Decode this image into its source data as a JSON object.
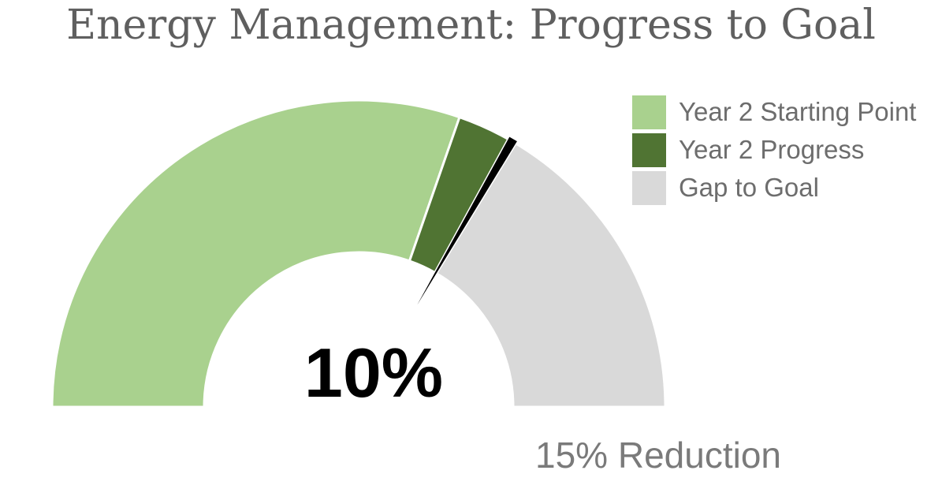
{
  "chart_data": {
    "type": "gauge",
    "title": "Energy Management: Progress to Goal",
    "value_label": "10%",
    "goal_label": "15% Reduction",
    "scale_max": 15,
    "series": [
      {
        "name": "Year 2 Starting Point",
        "value": 9.1,
        "color": "#a9d18e"
      },
      {
        "name": "Year 2 Progress",
        "value": 0.9,
        "color": "#507433"
      },
      {
        "name": "Gap to Goal",
        "value": 5.0,
        "color": "#d9d9d9"
      }
    ],
    "marker": {
      "value": 10,
      "color": "#000000"
    },
    "legend_position": "top-right"
  }
}
